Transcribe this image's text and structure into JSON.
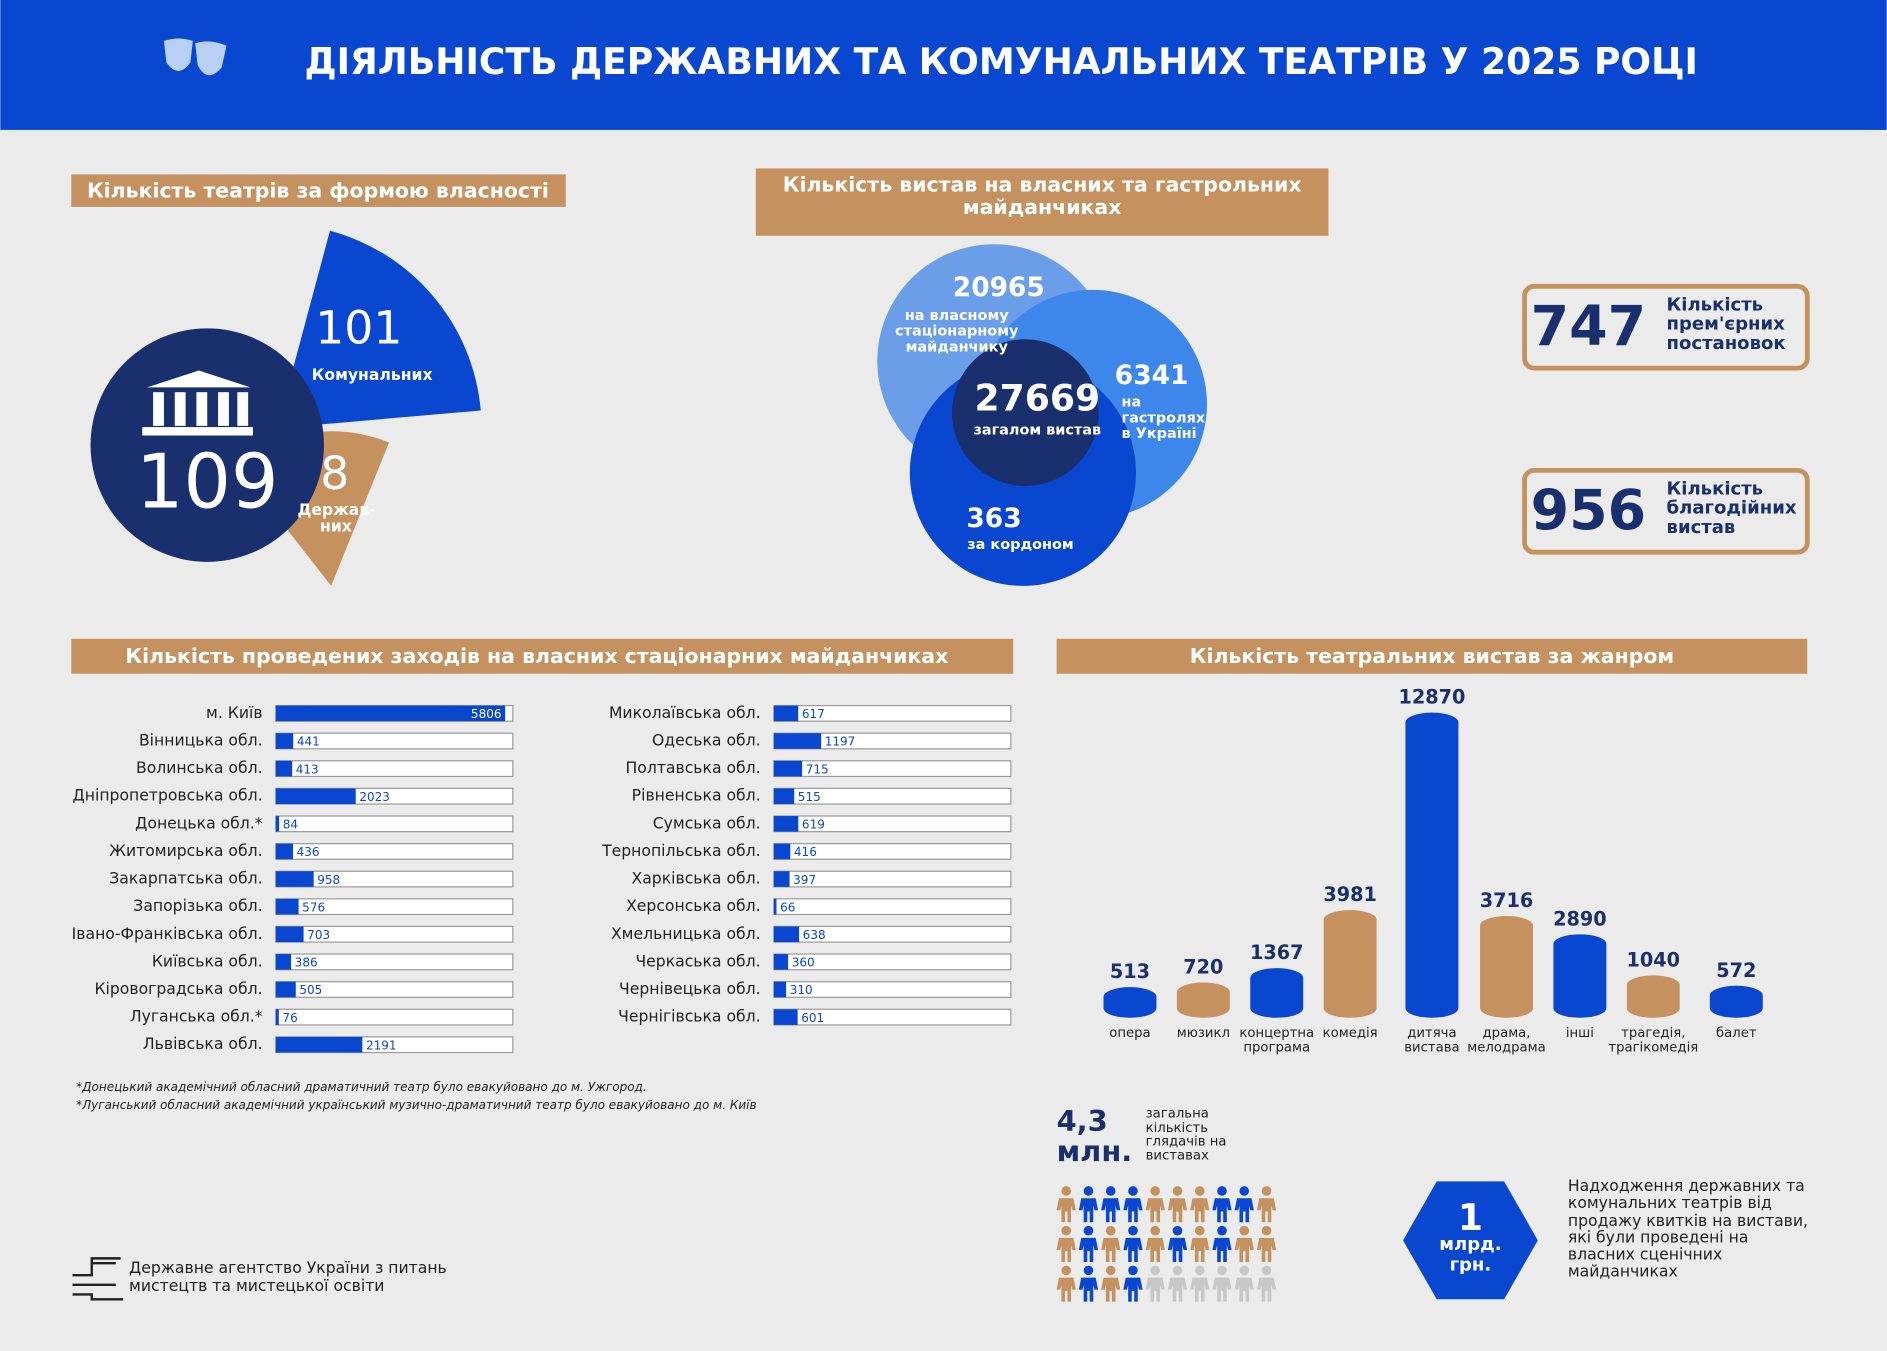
{
  "header": {
    "title": "ДІЯЛЬНІСТЬ ДЕРЖАВНИХ ТА КОМУНАЛЬНИХ ТЕАТРІВ У 2025 РОЦІ"
  },
  "chart_data": [
    {
      "type": "sector",
      "title": "Кількість театрів за формою власності",
      "total": 109,
      "series": [
        {
          "name": "Комунальних",
          "color": "#0a47d1",
          "value": 101
        },
        {
          "name": "Держав-них",
          "color": "#c4915f",
          "value": 8
        }
      ]
    },
    {
      "type": "venn",
      "title": "Кількість вистав на власних та гастрольних майданчиках",
      "total": 27669,
      "total_name": "загалом вистав",
      "categories": [
        "на власному стаціонарному майданчику",
        "на гастролях в Україні",
        "за кордоном"
      ],
      "values": [
        20965,
        6341,
        363
      ],
      "colors": [
        "#6b9ee9",
        "#3d87ea",
        "#0a47d1"
      ]
    },
    {
      "type": "barh",
      "title": "Кількість проведених заходів на власних стаціонарних майданчиках",
      "color": "#0a47d1",
      "xlim": [
        0,
        6000
      ],
      "categories": [
        "м. Київ",
        "Вінницька обл.",
        "Волинська обл.",
        "Дніпропетровська обл.",
        "Донецька обл.*",
        "Житомирська обл.",
        "Закарпатська обл.",
        "Запорізька обл.",
        "Івано-Франківська обл.",
        "Київська обл.",
        "Кіровоградська обл.",
        "Луганська обл.*",
        "Львівська обл.",
        "Миколаївська обл.",
        "Одеська обл.",
        "Полтавська обл.",
        "Рівненська обл.",
        "Сумська обл.",
        "Тернопільська обл.",
        "Харківська обл.",
        "Херсонська обл.",
        "Хмельницька обл.",
        "Черкаська обл.",
        "Чернівецька обл.",
        "Чернігівська обл."
      ],
      "values": [
        5806,
        441,
        413,
        2023,
        84,
        436,
        958,
        576,
        703,
        386,
        505,
        76,
        2191,
        617,
        1197,
        715,
        515,
        619,
        416,
        397,
        66,
        638,
        360,
        310,
        601
      ]
    },
    {
      "type": "cylinder",
      "title": "Кількість театральних вистав за жанром",
      "ylim": [
        0,
        13000
      ],
      "categories": [
        "опера",
        "мюзикл",
        "концертна програма",
        "комедія",
        "дитяча вистава",
        "драма, мелодрама",
        "інші",
        "трагедія, трагікомедія",
        "балет"
      ],
      "values": [
        513,
        720,
        1367,
        3981,
        12870,
        3716,
        2890,
        1040,
        572
      ],
      "colors": [
        "#0a47d1",
        "#c4915f",
        "#0a47d1",
        "#c4915f",
        "#0a47d1",
        "#c4915f",
        "#0a47d1",
        "#c4915f",
        "#0a47d1"
      ]
    }
  ],
  "stats": [
    {
      "value": 747,
      "label": "Кількість прем'єрних постановок"
    },
    {
      "value": 956,
      "label": "Кількість благодійних вистав"
    }
  ],
  "audience": {
    "value": "4,3 млн.",
    "label": "загальна кількість глядачів на виставах"
  },
  "revenue": {
    "value": "1",
    "unit": "млрд. грн.",
    "label": "Надходження державних та комунальних театрів від продажу квитків на вистави, які були проведені на власних сценічних майданчиках"
  },
  "footnotes": [
    "*Донецький академічний обласний драматичний театр було евакуйовано до м. Ужгород.",
    "*Луганський обласний академічний український музично-драматичний театр було евакуйовано до м. Київ"
  ],
  "footer": {
    "agency": "Державне агентство України з питань мистецтв та мистецької освіти"
  }
}
